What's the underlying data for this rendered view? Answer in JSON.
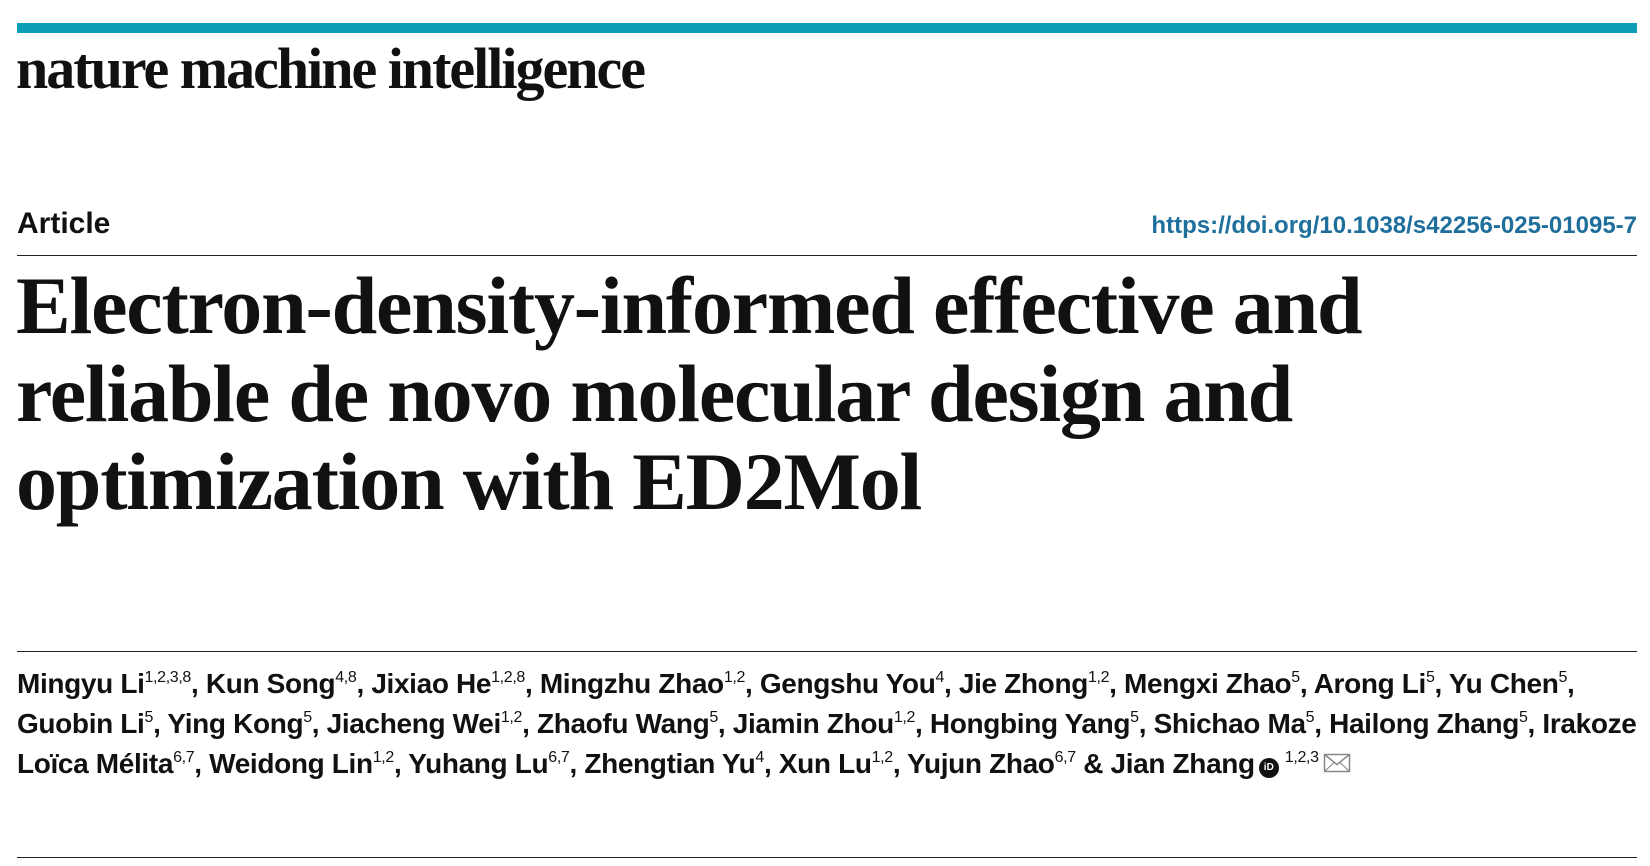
{
  "journal": {
    "name": "nature machine intelligence",
    "accent_color": "#0d9fb8"
  },
  "article": {
    "type": "Article",
    "doi": "https://doi.org/10.1038/s42256-025-01095-7",
    "title_lines": [
      "Electron-density-informed effective and",
      "reliable de novo molecular design and",
      "optimization with ED2Mol"
    ]
  },
  "authors": [
    {
      "name": "Mingyu Li",
      "aff": "1,2,3,8"
    },
    {
      "name": "Kun Song",
      "aff": "4,8"
    },
    {
      "name": "Jixiao He",
      "aff": "1,2,8"
    },
    {
      "name": "Mingzhu Zhao",
      "aff": "1,2"
    },
    {
      "name": "Gengshu You",
      "aff": "4"
    },
    {
      "name": "Jie Zhong",
      "aff": "1,2"
    },
    {
      "name": "Mengxi Zhao",
      "aff": "5"
    },
    {
      "name": "Arong Li",
      "aff": "5"
    },
    {
      "name": "Yu Chen",
      "aff": "5"
    },
    {
      "name": "Guobin Li",
      "aff": "5"
    },
    {
      "name": "Ying Kong",
      "aff": "5"
    },
    {
      "name": "Jiacheng Wei",
      "aff": "1,2"
    },
    {
      "name": "Zhaofu Wang",
      "aff": "5"
    },
    {
      "name": "Jiamin Zhou",
      "aff": "1,2"
    },
    {
      "name": "Hongbing Yang",
      "aff": "5"
    },
    {
      "name": "Shichao Ma",
      "aff": "5"
    },
    {
      "name": "Hailong Zhang",
      "aff": "5"
    },
    {
      "name": "Irakoze Loïca Mélita",
      "aff": "6,7"
    },
    {
      "name": "Weidong Lin",
      "aff": "1,2"
    },
    {
      "name": "Yuhang Lu",
      "aff": "6,7"
    },
    {
      "name": "Zhengtian Yu",
      "aff": "4"
    },
    {
      "name": "Xun Lu",
      "aff": "1,2"
    },
    {
      "name": "Yujun Zhao",
      "aff": "6,7"
    },
    {
      "name": "Jian Zhang",
      "aff": "1,2,3",
      "orcid": true,
      "corresponding": true
    }
  ],
  "author_separators": {
    "comma": ", ",
    "last": " & "
  },
  "icons": {
    "orcid": "orcid-icon",
    "orcid_text": "iD",
    "mail": "mail-icon"
  }
}
